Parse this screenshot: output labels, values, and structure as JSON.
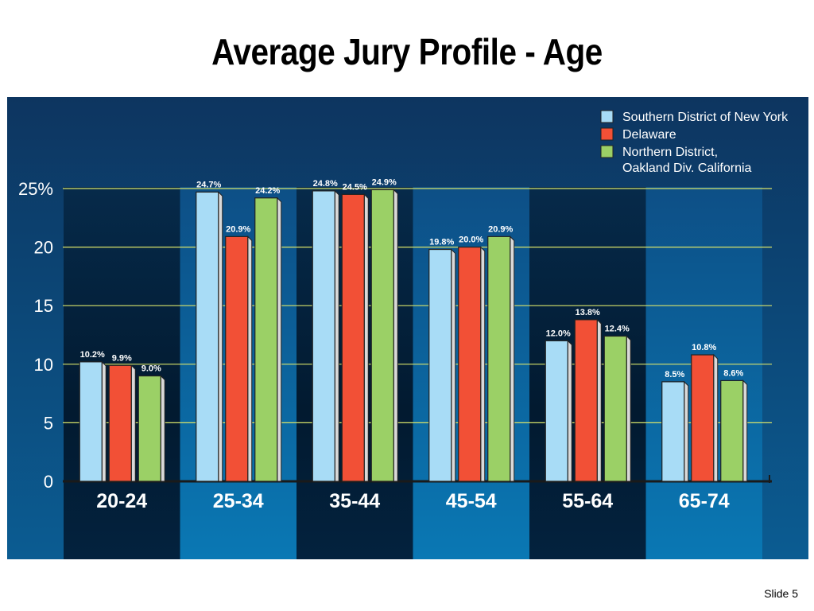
{
  "slide": {
    "title": "Average Jury Profile - Age",
    "slide_number": "Slide 5"
  },
  "chart_data": {
    "type": "bar",
    "title": "Average Jury Profile - Age",
    "xlabel": "",
    "ylabel": "",
    "ylim": [
      0,
      25
    ],
    "y_ticks": [
      {
        "value": 0,
        "label": "0"
      },
      {
        "value": 5,
        "label": "5"
      },
      {
        "value": 10,
        "label": "10"
      },
      {
        "value": 15,
        "label": "15"
      },
      {
        "value": 20,
        "label": "20"
      },
      {
        "value": 25,
        "label": "25%"
      }
    ],
    "grid": true,
    "legend_position": "top-right",
    "categories": [
      "20-24",
      "25-34",
      "35-44",
      "45-54",
      "55-64",
      "65-74"
    ],
    "series": [
      {
        "name": "Southern District of New York",
        "color": "#a8dcf6",
        "values": [
          10.2,
          24.7,
          24.8,
          19.8,
          12.0,
          8.5
        ],
        "labels": [
          "10.2%",
          "24.7%",
          "24.8%",
          "19.8%",
          "12.0%",
          "8.5%"
        ]
      },
      {
        "name": "Delaware",
        "color": "#f25036",
        "values": [
          9.9,
          20.9,
          24.5,
          20.0,
          13.8,
          10.8
        ],
        "labels": [
          "9.9%",
          "20.9%",
          "24.5%",
          "20.0%",
          "13.8%",
          "10.8%"
        ]
      },
      {
        "name": "Northern District, Oakland Div. California",
        "name_lines": [
          "Northern District,",
          "Oakland Div. California"
        ],
        "color": "#9bd066",
        "values": [
          9.0,
          24.2,
          24.9,
          20.9,
          12.4,
          8.6
        ],
        "labels": [
          "9.0%",
          "24.2%",
          "24.9%",
          "20.9%",
          "12.4%",
          "8.6%"
        ]
      }
    ],
    "colors": {
      "background": "#0a3d6e",
      "band_dark": "#03223d",
      "band_light": "#0a6fa8",
      "gridline": "#d8e36a",
      "text": "#ffffff"
    }
  }
}
